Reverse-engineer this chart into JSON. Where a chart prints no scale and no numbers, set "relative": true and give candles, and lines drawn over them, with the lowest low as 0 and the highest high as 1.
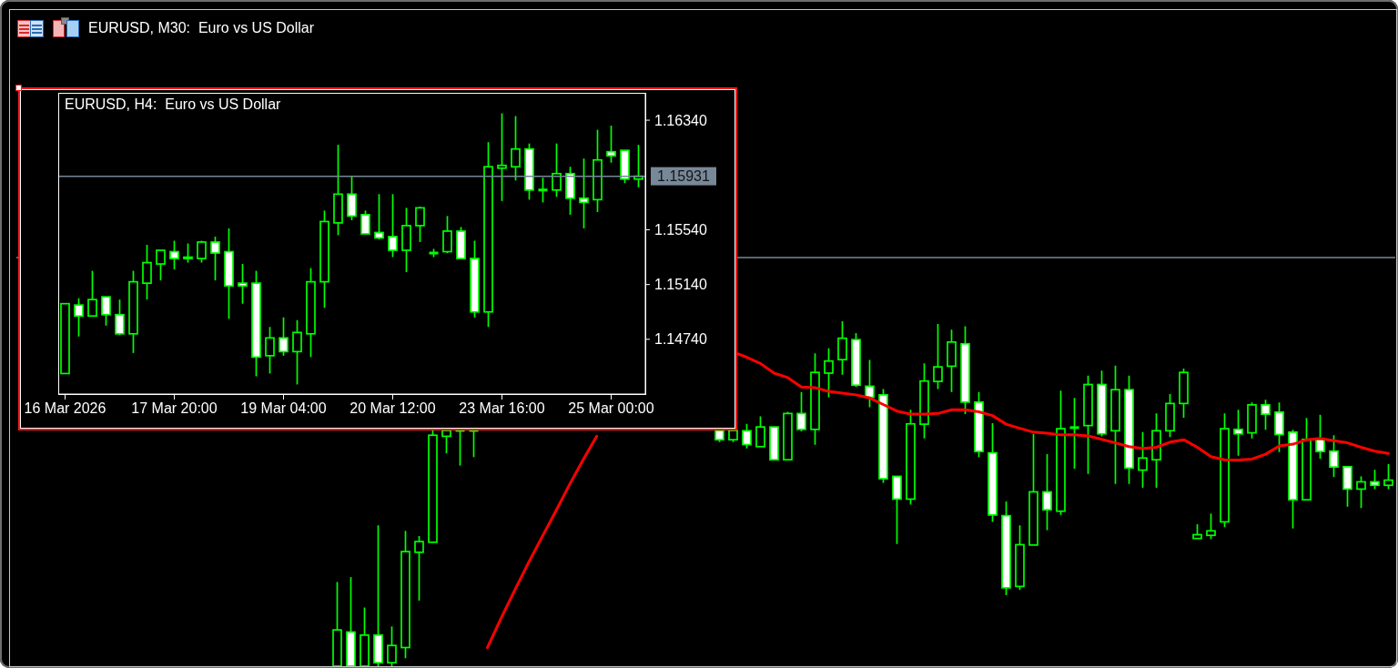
{
  "chart_data": [
    {
      "type": "candlestick",
      "title": "EURUSD, M30:  Euro vs US Dollar",
      "relative": true,
      "tick_labels": false,
      "color": "#00ff00",
      "categories": [
        null,
        null,
        null,
        null,
        null,
        null,
        null,
        null,
        null,
        null,
        null,
        null,
        null,
        null,
        null,
        null,
        null,
        null,
        null,
        null,
        null,
        null,
        null,
        null,
        null,
        null,
        null,
        null,
        null,
        null,
        null,
        null,
        null,
        null,
        null,
        null,
        null,
        null,
        null,
        null,
        null,
        null,
        null,
        null,
        null,
        null,
        null,
        null,
        null,
        null,
        null,
        null,
        null,
        null,
        null,
        null,
        null,
        null,
        null,
        null,
        null,
        null,
        null,
        null,
        null,
        null,
        null,
        null,
        null,
        null,
        null,
        null,
        null,
        null,
        null,
        null,
        null,
        null,
        null,
        null,
        null,
        null,
        null,
        null,
        null,
        null,
        null,
        null,
        null,
        null,
        null,
        null,
        null,
        null,
        null,
        null,
        null,
        null,
        null,
        null,
        null
      ],
      "ohlc": [
        null,
        null,
        null,
        null,
        null,
        null,
        null,
        null,
        null,
        null,
        null,
        null,
        null,
        null,
        null,
        null,
        null,
        null,
        null,
        null,
        null,
        null,
        null,
        [
          0,
          0.244,
          0,
          0.105
        ],
        [
          0.099,
          0.258,
          0,
          0
        ],
        [
          0,
          0.17,
          0,
          0.09
        ],
        [
          0.09,
          0.408,
          0,
          0.01
        ],
        [
          0.01,
          0.115,
          0,
          0.06
        ],
        [
          0.054,
          0.392,
          0.023,
          0.332
        ],
        [
          0.33,
          0.377,
          0.19,
          0.361
        ],
        [
          0.359,
          0.683,
          0.359,
          0.669
        ],
        [
          0.666,
          0.683,
          0.616,
          0.683
        ],
        [
          0.683,
          0.683,
          0.581,
          0.683
        ],
        [
          0.683,
          0.683,
          0.606,
          0.683
        ],
        null,
        null,
        null,
        null,
        null,
        null,
        null,
        null,
        null,
        null,
        null,
        null,
        null,
        null,
        null,
        null,
        null,
        [
          0.683,
          0.683,
          0.649,
          0.656
        ],
        [
          0.656,
          0.683,
          0.649,
          0.683
        ],
        [
          0.682,
          0.702,
          0.631,
          0.642
        ],
        [
          0.636,
          0.724,
          0.636,
          0.693
        ],
        [
          0.693,
          0.693,
          0.598,
          0.598
        ],
        [
          0.598,
          0.737,
          0.598,
          0.732
        ],
        [
          0.732,
          0.794,
          0.68,
          0.686
        ],
        [
          0.686,
          0.906,
          0.641,
          0.851
        ],
        [
          0.849,
          0.921,
          0.779,
          0.884
        ],
        [
          0.888,
          1,
          0.844,
          0.95
        ],
        [
          0.946,
          0.965,
          0.809,
          0.814
        ],
        [
          0.811,
          0.887,
          0.75,
          0.779
        ],
        [
          0.786,
          0.803,
          0.531,
          0.543
        ],
        [
          0.55,
          0.55,
          0.354,
          0.484
        ],
        [
          0.484,
          0.743,
          0.468,
          0.702
        ],
        [
          0.701,
          0.877,
          0.66,
          0.826
        ],
        [
          0.825,
          0.991,
          0.803,
          0.867
        ],
        [
          0.869,
          0.975,
          0.794,
          0.939
        ],
        [
          0.934,
          0.985,
          0.73,
          0.765
        ],
        [
          0.765,
          0.794,
          0.606,
          0.622
        ],
        [
          0.618,
          0.704,
          0.418,
          0.438
        ],
        [
          0.436,
          0.477,
          0.206,
          0.227
        ],
        [
          0.231,
          0.408,
          0.221,
          0.352
        ],
        [
          0.351,
          0.673,
          0.351,
          0.505
        ],
        [
          0.505,
          0.614,
          0.394,
          0.453
        ],
        [
          0.449,
          0.798,
          0.438,
          0.688
        ],
        [
          0.691,
          0.777,
          0.572,
          0.691
        ],
        [
          0.697,
          0.842,
          0.557,
          0.816
        ],
        [
          0.816,
          0.856,
          0.666,
          0.673
        ],
        [
          0.682,
          0.871,
          0.528,
          0.801
        ],
        [
          0.801,
          0.842,
          0.528,
          0.574
        ],
        [
          0.568,
          0.678,
          0.517,
          0.603
        ],
        [
          0.598,
          0.732,
          0.517,
          0.682
        ],
        [
          0.682,
          0.788,
          0.664,
          0.761
        ],
        [
          0.761,
          0.862,
          0.72,
          0.851
        ],
        [
          0.37,
          0.411,
          0.37,
          0.381
        ],
        [
          0.379,
          0.442,
          0.368,
          0.392
        ],
        [
          0.418,
          0.732,
          0.403,
          0.688
        ],
        [
          0.686,
          0.743,
          0.61,
          0.673
        ],
        [
          0.676,
          0.764,
          0.66,
          0.757
        ],
        [
          0.757,
          0.772,
          0.685,
          0.73
        ],
        [
          0.736,
          0.764,
          0.62,
          0.671
        ],
        [
          0.678,
          0.685,
          0.399,
          0.482
        ],
        [
          0.482,
          0.719,
          0.482,
          0.657
        ],
        [
          0.657,
          0.728,
          0.601,
          0.622
        ],
        [
          0.623,
          0.669,
          0.548,
          0.577
        ],
        [
          0.578,
          0.578,
          0.462,
          0.513
        ],
        [
          0.513,
          0.55,
          0.458,
          0.534
        ],
        [
          0.534,
          0.569,
          0.513,
          0.524
        ],
        [
          0.524,
          0.585,
          0.513,
          0.539
        ]
      ],
      "series": [
        {
          "type": "line",
          "color": "#ff0000",
          "values": [
            null,
            null,
            null,
            null,
            null,
            null,
            null,
            null,
            null,
            null,
            null,
            null,
            null,
            null,
            null,
            null,
            null,
            null,
            null,
            null,
            null,
            null,
            null,
            null,
            null,
            null,
            null,
            null,
            null,
            null,
            null,
            null,
            null,
            null,
            0.054,
            0.139,
            0.22,
            0.299,
            0.374,
            0.448,
            0.525,
            0.597,
            0.666,
            null,
            null,
            null,
            null,
            null,
            null,
            null,
            null,
            null,
            0.91,
            0.895,
            0.877,
            0.849,
            0.836,
            0.809,
            0.807,
            0.796,
            0.791,
            0.786,
            0.777,
            0.758,
            0.739,
            0.73,
            0.73,
            0.732,
            0.743,
            0.743,
            0.737,
            0.726,
            0.701,
            0.689,
            0.678,
            0.675,
            0.67,
            0.67,
            0.667,
            0.657,
            0.647,
            0.636,
            0.631,
            0.634,
            0.649,
            0.656,
            0.634,
            0.607,
            0.598,
            0.597,
            0.6,
            0.614,
            0.638,
            0.643,
            0.656,
            0.66,
            0.653,
            0.647,
            0.634,
            0.623,
            0.616
          ]
        }
      ],
      "ref_lines": [
        {
          "axis": "y",
          "value": 1.184,
          "color": "#778899"
        }
      ]
    },
    {
      "type": "candlestick",
      "title": "EURUSD, H4:  Euro vs US Dollar",
      "color": "#00ff00",
      "categories": [
        "16 Mar 2026",
        null,
        null,
        null,
        null,
        null,
        null,
        null,
        "17 Mar 20:00",
        null,
        null,
        null,
        null,
        null,
        null,
        null,
        "19 Mar 04:00",
        null,
        null,
        null,
        null,
        null,
        null,
        null,
        "20 Mar 12:00",
        null,
        null,
        null,
        null,
        null,
        null,
        null,
        "23 Mar 16:00",
        null,
        null,
        null,
        null,
        null,
        null,
        null,
        "25 Mar 00:00",
        null,
        null
      ],
      "ohlc": [
        [
          1.1449,
          1.15,
          1.1449,
          1.15
        ],
        [
          1.1499,
          1.1504,
          1.1476,
          1.1491
        ],
        [
          1.1491,
          1.1524,
          1.1491,
          1.1503
        ],
        [
          1.1505,
          1.1505,
          1.1484,
          1.1492
        ],
        [
          1.1492,
          1.1503,
          1.1477,
          1.1478
        ],
        [
          1.1478,
          1.1524,
          1.1464,
          1.1516
        ],
        [
          1.1515,
          1.1543,
          1.1503,
          1.153
        ],
        [
          1.1529,
          1.1539,
          1.1517,
          1.1539
        ],
        [
          1.1538,
          1.1546,
          1.1525,
          1.1533
        ],
        [
          1.1533,
          1.1544,
          1.153,
          1.1534
        ],
        [
          1.1533,
          1.1546,
          1.153,
          1.1545
        ],
        [
          1.1545,
          1.1549,
          1.1517,
          1.1537
        ],
        [
          1.1538,
          1.1555,
          1.1489,
          1.1513
        ],
        [
          1.1515,
          1.1529,
          1.15,
          1.1513
        ],
        [
          1.1515,
          1.1524,
          1.1447,
          1.1461
        ],
        [
          1.1462,
          1.1483,
          1.1449,
          1.1475
        ],
        [
          1.1475,
          1.149,
          1.1462,
          1.1465
        ],
        [
          1.1465,
          1.1488,
          1.1441,
          1.1479
        ],
        [
          1.1478,
          1.1526,
          1.1461,
          1.1516
        ],
        [
          1.1516,
          1.1568,
          1.1497,
          1.156
        ],
        [
          1.1559,
          1.1616,
          1.155,
          1.158
        ],
        [
          1.158,
          1.1593,
          1.1561,
          1.1564
        ],
        [
          1.1565,
          1.1568,
          1.1551,
          1.1551
        ],
        [
          1.1552,
          1.158,
          1.1547,
          1.1548
        ],
        [
          1.1549,
          1.158,
          1.1534,
          1.1539
        ],
        [
          1.1539,
          1.157,
          1.1523,
          1.1557
        ],
        [
          1.1557,
          1.1571,
          1.1545,
          1.157
        ],
        [
          1.1537,
          1.154,
          1.1534,
          1.1537
        ],
        [
          1.1538,
          1.1564,
          1.1537,
          1.1553
        ],
        [
          1.1553,
          1.1556,
          1.1533,
          1.1533
        ],
        [
          1.1533,
          1.1546,
          1.149,
          1.1494
        ],
        [
          1.1494,
          1.1618,
          1.1483,
          1.16
        ],
        [
          1.1599,
          1.1639,
          1.1575,
          1.1601
        ],
        [
          1.16,
          1.1637,
          1.159,
          1.1613
        ],
        [
          1.1613,
          1.1617,
          1.1576,
          1.1583
        ],
        [
          1.1583,
          1.1592,
          1.1574,
          1.1583
        ],
        [
          1.1583,
          1.1617,
          1.1578,
          1.1595
        ],
        [
          1.1595,
          1.16,
          1.1565,
          1.1577
        ],
        [
          1.1577,
          1.1606,
          1.1555,
          1.1574
        ],
        [
          1.1576,
          1.1627,
          1.1567,
          1.1605
        ],
        [
          1.1611,
          1.163,
          1.1603,
          1.1608
        ],
        [
          1.1612,
          1.1612,
          1.1588,
          1.1591
        ],
        [
          1.1591,
          1.1616,
          1.1585,
          1.15931
        ]
      ],
      "ylim": [
        1.1434,
        1.1654
      ],
      "yticks": [
        {
          "value": 1.1474,
          "label": "1.14740"
        },
        {
          "value": 1.1514,
          "label": "1.15140"
        },
        {
          "value": 1.1554,
          "label": "1.15540"
        },
        {
          "value": 1.1634,
          "label": "1.16340"
        }
      ],
      "ref_lines": [
        {
          "axis": "y",
          "value": 1.15931,
          "label": "1.15931",
          "color": "#778899"
        }
      ]
    }
  ]
}
